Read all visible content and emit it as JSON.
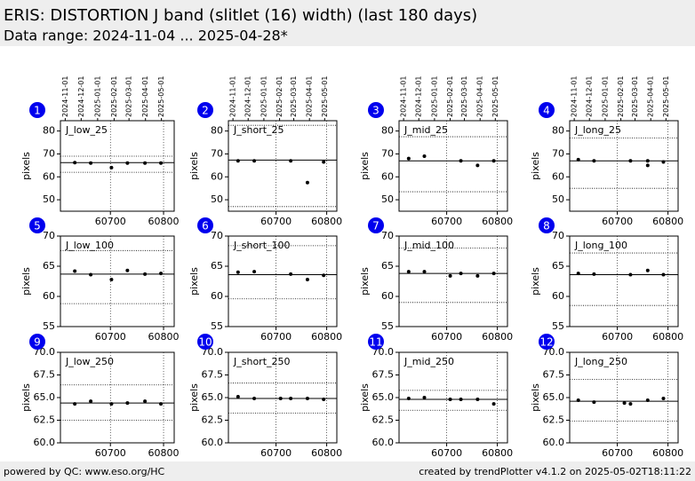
{
  "header": {
    "title": "ERIS: DISTORTION J band (slitlet (16) width) (last 180 days)",
    "subtitle": "Data range: 2024-11-04 ... 2025-04-28*"
  },
  "footer": {
    "left": "powered by QC: www.eso.org/HC",
    "right": "created by trendPlotter v4.1.2 on 2025-05-02T18:11:22"
  },
  "chart_data": [
    {
      "type": "scatter",
      "badge": "1",
      "title": "J_low_25",
      "ylabel": "pixels",
      "color": "#000000",
      "xlim": [
        60606,
        60820
      ],
      "xticks": [
        60700,
        60800
      ],
      "ylim": [
        45,
        84.5
      ],
      "yticks": [
        50,
        60,
        70,
        80
      ],
      "top_xticks": [
        {
          "value": 60615,
          "label": "2024-11-01"
        },
        {
          "value": 60645,
          "label": "2024-12-01"
        },
        {
          "value": 60676,
          "label": "2025-01-01"
        },
        {
          "value": 60707,
          "label": "2025-02-01"
        },
        {
          "value": 60735,
          "label": "2025-03-01"
        },
        {
          "value": 60766,
          "label": "2025-04-01"
        },
        {
          "value": 60796,
          "label": "2025-05-01"
        }
      ],
      "x": [
        60633,
        60663,
        60702,
        60732,
        60765,
        60795
      ],
      "values": [
        66.2,
        66,
        64,
        66,
        66,
        66
      ],
      "median": 66.2,
      "limits": [
        62,
        69
      ]
    },
    {
      "type": "scatter",
      "badge": "2",
      "title": "J_short_25",
      "ylabel": "pixels",
      "color": "#000000",
      "xlim": [
        60606,
        60820
      ],
      "xticks": [
        60700,
        60800
      ],
      "ylim": [
        45,
        84.5
      ],
      "yticks": [
        50,
        60,
        70,
        80
      ],
      "top_xticks": [
        {
          "value": 60615,
          "label": "2024-11-01"
        },
        {
          "value": 60645,
          "label": "2024-12-01"
        },
        {
          "value": 60676,
          "label": "2025-01-01"
        },
        {
          "value": 60707,
          "label": "2025-02-01"
        },
        {
          "value": 60735,
          "label": "2025-03-01"
        },
        {
          "value": 60766,
          "label": "2025-04-01"
        },
        {
          "value": 60796,
          "label": "2025-05-01"
        }
      ],
      "x": [
        60625,
        60657,
        60729,
        60762,
        60794
      ],
      "values": [
        67,
        67,
        67,
        57.5,
        66.5
      ],
      "median": 67.3,
      "limits": [
        47,
        82.5
      ]
    },
    {
      "type": "scatter",
      "badge": "3",
      "title": "J_mid_25",
      "ylabel": "pixels",
      "color": "#000000",
      "xlim": [
        60606,
        60820
      ],
      "xticks": [
        60700,
        60800
      ],
      "ylim": [
        45,
        84.5
      ],
      "yticks": [
        50,
        60,
        70,
        80
      ],
      "top_xticks": [
        {
          "value": 60615,
          "label": "2024-11-01"
        },
        {
          "value": 60645,
          "label": "2024-12-01"
        },
        {
          "value": 60676,
          "label": "2025-01-01"
        },
        {
          "value": 60707,
          "label": "2025-02-01"
        },
        {
          "value": 60735,
          "label": "2025-03-01"
        },
        {
          "value": 60766,
          "label": "2025-04-01"
        },
        {
          "value": 60796,
          "label": "2025-05-01"
        }
      ],
      "x": [
        60625,
        60656,
        60728,
        60761,
        60793
      ],
      "values": [
        68,
        69,
        67,
        65,
        67
      ],
      "median": 67,
      "limits": [
        53.5,
        77.5
      ]
    },
    {
      "type": "scatter",
      "badge": "4",
      "title": "J_long_25",
      "ylabel": "pixels",
      "color": "#000000",
      "xlim": [
        60606,
        60820
      ],
      "xticks": [
        60700,
        60800
      ],
      "ylim": [
        45,
        84.5
      ],
      "yticks": [
        50,
        60,
        70,
        80
      ],
      "top_xticks": [
        {
          "value": 60615,
          "label": "2024-11-01"
        },
        {
          "value": 60645,
          "label": "2024-12-01"
        },
        {
          "value": 60676,
          "label": "2025-01-01"
        },
        {
          "value": 60707,
          "label": "2025-02-01"
        },
        {
          "value": 60735,
          "label": "2025-03-01"
        },
        {
          "value": 60766,
          "label": "2025-04-01"
        },
        {
          "value": 60796,
          "label": "2025-05-01"
        }
      ],
      "x": [
        60623,
        60654,
        60726,
        60760,
        60760,
        60791
      ],
      "values": [
        67.5,
        67,
        67,
        65,
        67,
        66.5
      ],
      "median": 67,
      "limits": [
        55,
        77
      ]
    },
    {
      "type": "scatter",
      "badge": "5",
      "title": "J_low_100",
      "ylabel": "pixels",
      "color": "#000000",
      "xlim": [
        60606,
        60820
      ],
      "xticks": [
        60700,
        60800
      ],
      "ylim": [
        55,
        70
      ],
      "yticks": [
        55,
        60,
        65,
        70
      ],
      "x": [
        60633,
        60663,
        60702,
        60732,
        60765,
        60795
      ],
      "values": [
        64.2,
        63.6,
        62.8,
        64.3,
        63.7,
        63.8
      ],
      "median": 63.7,
      "limits": [
        58.8,
        67.6
      ]
    },
    {
      "type": "scatter",
      "badge": "6",
      "title": "J_short_100",
      "ylabel": "pixels",
      "color": "#000000",
      "xlim": [
        60606,
        60820
      ],
      "xticks": [
        60700,
        60800
      ],
      "ylim": [
        55,
        70
      ],
      "yticks": [
        55,
        60,
        65,
        70
      ],
      "x": [
        60625,
        60657,
        60729,
        60762,
        60794
      ],
      "values": [
        64,
        64.1,
        63.7,
        62.8,
        63.5
      ],
      "median": 63.6,
      "limits": [
        59.6,
        68.4
      ]
    },
    {
      "type": "scatter",
      "badge": "7",
      "title": "J_mid_100",
      "ylabel": "pixels",
      "color": "#000000",
      "xlim": [
        60606,
        60820
      ],
      "xticks": [
        60700,
        60800
      ],
      "ylim": [
        55,
        70
      ],
      "yticks": [
        55,
        60,
        65,
        70
      ],
      "x": [
        60625,
        60656,
        60707,
        60728,
        60761,
        60793
      ],
      "values": [
        64.1,
        64.1,
        63.4,
        63.8,
        63.4,
        63.8
      ],
      "median": 63.8,
      "limits": [
        59,
        68
      ]
    },
    {
      "type": "scatter",
      "badge": "8",
      "title": "J_long_100",
      "ylabel": "pixels",
      "color": "#000000",
      "xlim": [
        60606,
        60820
      ],
      "xticks": [
        60700,
        60800
      ],
      "ylim": [
        55,
        70
      ],
      "yticks": [
        55,
        60,
        65,
        70
      ],
      "x": [
        60623,
        60654,
        60726,
        60760,
        60791
      ],
      "values": [
        63.8,
        63.7,
        63.6,
        64.3,
        63.6
      ],
      "median": 63.6,
      "limits": [
        58.5,
        67.2
      ]
    },
    {
      "type": "scatter",
      "badge": "9",
      "title": "J_low_250",
      "ylabel": "pixels",
      "color": "#000000",
      "xlim": [
        60606,
        60820
      ],
      "xticks": [
        60700,
        60800
      ],
      "ylim": [
        60,
        70
      ],
      "yticks": [
        {
          "value": 60,
          "label": "60.0"
        },
        {
          "value": 62.5,
          "label": "62.5"
        },
        {
          "value": 65,
          "label": "65.0"
        },
        {
          "value": 67.5,
          "label": "67.5"
        },
        {
          "value": 70,
          "label": "70.0"
        }
      ],
      "x": [
        60633,
        60663,
        60702,
        60732,
        60765,
        60795
      ],
      "values": [
        64.3,
        64.6,
        64.3,
        64.4,
        64.6,
        64.3
      ],
      "median": 64.4,
      "limits": [
        62.5,
        66.4
      ]
    },
    {
      "type": "scatter",
      "badge": "10",
      "title": "J_short_250",
      "ylabel": "pixels",
      "color": "#000000",
      "xlim": [
        60606,
        60820
      ],
      "xticks": [
        60700,
        60800
      ],
      "ylim": [
        60,
        70
      ],
      "yticks": [
        {
          "value": 60,
          "label": "60.0"
        },
        {
          "value": 62.5,
          "label": "62.5"
        },
        {
          "value": 65,
          "label": "65.0"
        },
        {
          "value": 67.5,
          "label": "67.5"
        },
        {
          "value": 70,
          "label": "70.0"
        }
      ],
      "x": [
        60625,
        60657,
        60709,
        60729,
        60762,
        60794
      ],
      "values": [
        65.1,
        64.9,
        64.9,
        64.9,
        64.9,
        64.8
      ],
      "median": 64.9,
      "limits": [
        63.3,
        66.6
      ]
    },
    {
      "type": "scatter",
      "badge": "11",
      "title": "J_mid_250",
      "ylabel": "pixels",
      "color": "#000000",
      "xlim": [
        60606,
        60820
      ],
      "xticks": [
        60700,
        60800
      ],
      "ylim": [
        60,
        70
      ],
      "yticks": [
        {
          "value": 60,
          "label": "60.0"
        },
        {
          "value": 62.5,
          "label": "62.5"
        },
        {
          "value": 65,
          "label": "65.0"
        },
        {
          "value": 67.5,
          "label": "67.5"
        },
        {
          "value": 70,
          "label": "70.0"
        }
      ],
      "x": [
        60625,
        60656,
        60707,
        60728,
        60761,
        60793
      ],
      "values": [
        64.9,
        65,
        64.8,
        64.8,
        64.8,
        64.3
      ],
      "median": 64.8,
      "limits": [
        63.6,
        65.8
      ]
    },
    {
      "type": "scatter",
      "badge": "12",
      "title": "J_long_250",
      "ylabel": "pixels",
      "color": "#000000",
      "xlim": [
        60606,
        60820
      ],
      "xticks": [
        60700,
        60800
      ],
      "ylim": [
        60,
        70
      ],
      "yticks": [
        {
          "value": 60,
          "label": "60.0"
        },
        {
          "value": 62.5,
          "label": "62.5"
        },
        {
          "value": 65,
          "label": "65.0"
        },
        {
          "value": 67.5,
          "label": "67.5"
        },
        {
          "value": 70,
          "label": "70.0"
        }
      ],
      "x": [
        60623,
        60654,
        60714,
        60726,
        60760,
        60791
      ],
      "values": [
        64.7,
        64.5,
        64.4,
        64.3,
        64.7,
        64.9
      ],
      "median": 64.6,
      "limits": [
        62.4,
        67
      ]
    }
  ]
}
